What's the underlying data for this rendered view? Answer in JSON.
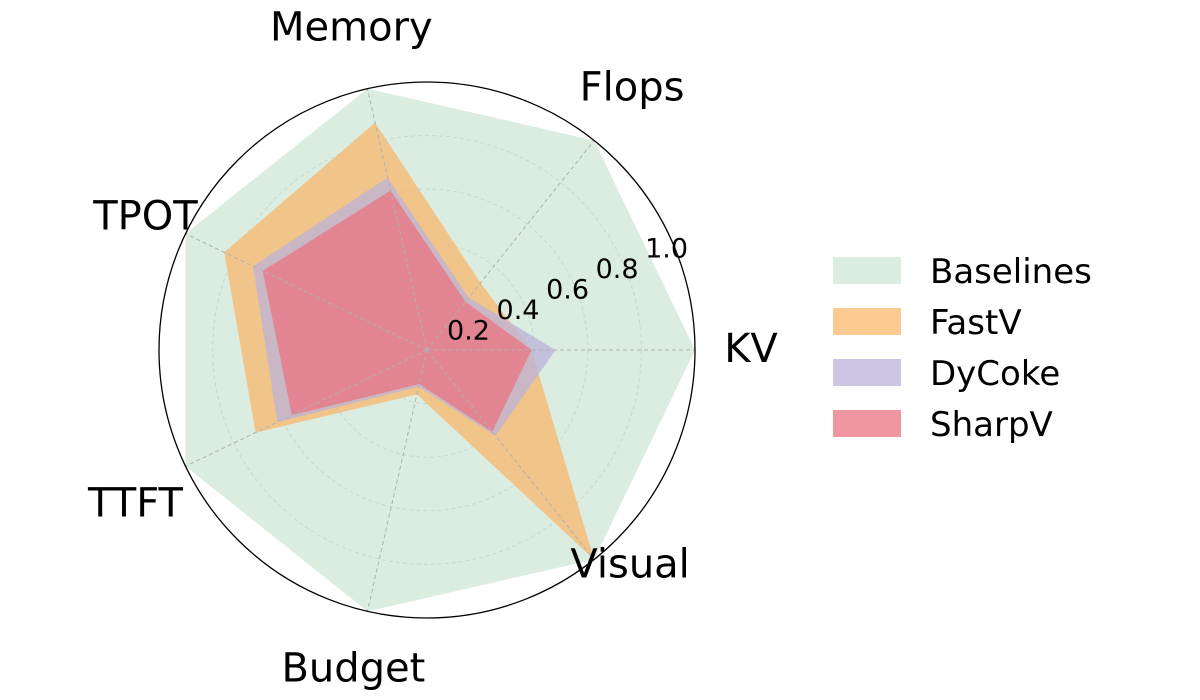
{
  "chart_data": {
    "type": "radar",
    "axes": [
      "KV",
      "Flops",
      "Memory",
      "TPOT",
      "TTFT",
      "Budget",
      "Visual"
    ],
    "tick_labels": [
      "0.2",
      "0.4",
      "0.6",
      "0.8",
      "1.0"
    ],
    "ticks": [
      0.2,
      0.4,
      0.6,
      0.8,
      1.0
    ],
    "rlim": [
      0,
      1.0
    ],
    "grid": true,
    "legend_position": "right",
    "series": [
      {
        "name": "Baselines",
        "values": [
          1.0,
          1.0,
          1.0,
          1.0,
          1.0,
          1.0,
          1.0
        ],
        "color": "#cfe6d6",
        "opacity": 0.75
      },
      {
        "name": "FastV",
        "values": [
          0.39,
          0.32,
          0.87,
          0.84,
          0.71,
          0.17,
          1.0
        ],
        "color": "#f8b86c",
        "opacity": 0.75
      },
      {
        "name": "DyCoke",
        "values": [
          0.48,
          0.25,
          0.66,
          0.72,
          0.62,
          0.14,
          0.41
        ],
        "color": "#bbb2da",
        "opacity": 0.75
      },
      {
        "name": "SharpV",
        "values": [
          0.39,
          0.23,
          0.61,
          0.68,
          0.56,
          0.13,
          0.39
        ],
        "color": "#ea7380",
        "opacity": 0.75
      }
    ]
  }
}
